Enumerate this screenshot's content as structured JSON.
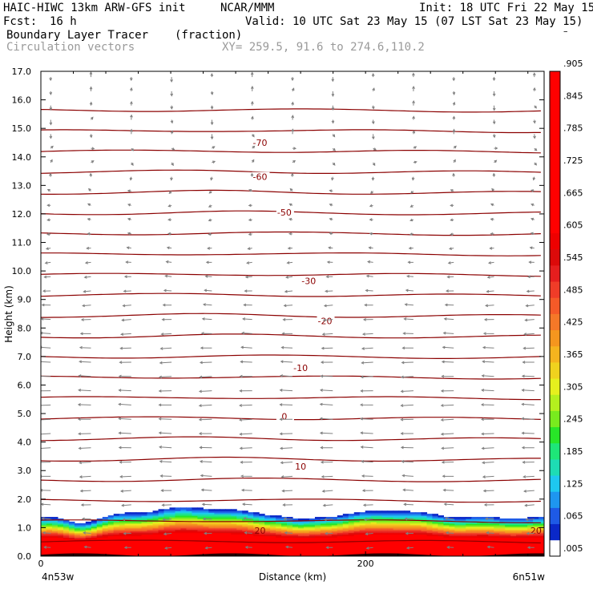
{
  "header": {
    "model": "HAIC-HIWC 13km ARW-GFS init",
    "org": "NCAR/MMM",
    "init": "Init: 18 UTC Fri 22 May 15",
    "fcst_label": "Fcst:",
    "fcst_value": "16 h",
    "valid": "Valid: 10 UTC Sat 23 May 15 (07 LST Sat 23 May 15)",
    "field": "Boundary Layer Tracer",
    "field_units": "(fraction)",
    "overlay": "Circulation vectors",
    "xy": "XY= 259.5, 91.6 to 274.6,110.2"
  },
  "chart_data": {
    "type": "heatmap",
    "xlabel": "Distance (km)",
    "ylabel": "Height (km)",
    "xlim": [
      0,
      310
    ],
    "ylim": [
      0,
      17
    ],
    "x_ticks": [
      0,
      200
    ],
    "x_end_labels": [
      "4n53w",
      "6n51w"
    ],
    "y_ticks": [
      "0.0",
      "1.0",
      "2.0",
      "3.0",
      "4.0",
      "5.0",
      "6.0",
      "7.0",
      "8.0",
      "9.0",
      "10.0",
      "11.0",
      "12.0",
      "13.0",
      "14.0",
      "15.0",
      "16.0",
      "17.0"
    ],
    "colorbar_labels": [
      ".005",
      ".065",
      ".125",
      ".185",
      ".245",
      ".305",
      ".365",
      ".425",
      ".485",
      ".545",
      ".605",
      ".665",
      ".725",
      ".785",
      ".845",
      ".905",
      "–"
    ],
    "colorbar_colors": [
      "#ffffff",
      "#0a28c8",
      "#1e5ae6",
      "#1e96f0",
      "#1ec8f0",
      "#1edcb4",
      "#1ee678",
      "#28e628",
      "#78eb1e",
      "#b4f01e",
      "#e6f01e",
      "#f0d21e",
      "#f5b41e",
      "#f5961e",
      "#f57828",
      "#f55a28",
      "#f03c28",
      "#e61e1e",
      "#dc0a0a",
      "#ee0000",
      "#ff0000",
      "#ff0000",
      "#ff0000",
      "#ff0000",
      "#ff0000",
      "#ff0000",
      "#ff0000",
      "#ff0000",
      "#ff0000",
      "#ff0000"
    ],
    "isotherm_color": "#8b0000",
    "isotherm_labels": [
      "-70",
      "-60",
      "-50",
      "-30",
      "-20",
      "-10",
      "0",
      "10",
      "20",
      "20"
    ],
    "vector_color": "#808080"
  }
}
